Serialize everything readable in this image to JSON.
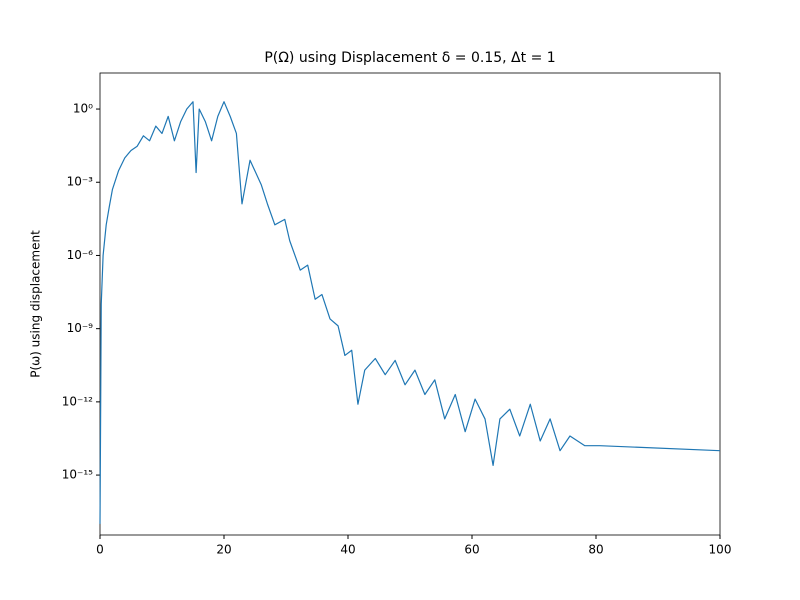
{
  "chart_data": {
    "type": "line",
    "title": "P(Ω) using Displacement δ = 0.15, Δt = 1",
    "y_label": "P(ω) using displacement",
    "yscale": "log",
    "grid": false,
    "xlim": [
      0,
      100
    ],
    "ylim": [
      3.5e-18,
      30
    ],
    "xticks": [
      0,
      20,
      40,
      60,
      80,
      100
    ],
    "yticks": [
      {
        "value": 1,
        "label": "10⁰"
      },
      {
        "value": 0.001,
        "label": "10⁻³"
      },
      {
        "value": 1e-06,
        "label": "10⁻⁶"
      },
      {
        "value": 1e-09,
        "label": "10⁻⁹"
      },
      {
        "value": 1e-12,
        "label": "10⁻¹²"
      },
      {
        "value": 1e-15,
        "label": "10⁻¹⁵"
      }
    ],
    "series": [
      {
        "color": "#1f77b4",
        "x": [
          0,
          0.2,
          0.5,
          1,
          1.5,
          2,
          3,
          4,
          5,
          6,
          7,
          8,
          9,
          10,
          11,
          12,
          13,
          14,
          15,
          15.5,
          16,
          17,
          18,
          19,
          20,
          21,
          22,
          22.9,
          24.2,
          26,
          27,
          28.2,
          29.8,
          30.6,
          32.3,
          33.5,
          34.7,
          35.8,
          37.1,
          38.4,
          39.5,
          40.6,
          41.6,
          42.7,
          44.4,
          46,
          47.6,
          49.2,
          50.8,
          52.4,
          54,
          55.6,
          57.3,
          58.9,
          60.5,
          62.1,
          63.4,
          64.5,
          66.1,
          67.7,
          69.4,
          71,
          72.6,
          74.2,
          75.8,
          78.2,
          80.6,
          100
        ],
        "values": [
          1e-17,
          1e-08,
          1e-06,
          1.8e-05,
          0.0001,
          0.0005,
          0.003,
          0.01,
          0.02,
          0.03,
          0.08,
          0.05,
          0.2,
          0.1,
          0.5,
          0.05,
          0.3,
          1,
          2,
          0.0025,
          1,
          0.3,
          0.05,
          0.5,
          2,
          0.5,
          0.1,
          0.00013,
          0.008,
          0.0008,
          0.00013,
          1.8e-05,
          3e-05,
          4e-06,
          2.5e-07,
          4e-07,
          1.6e-08,
          2.5e-08,
          2.5e-09,
          1.3e-09,
          8e-11,
          1.3e-10,
          8e-13,
          2e-11,
          6e-11,
          1.3e-11,
          5e-11,
          5e-12,
          2e-11,
          2e-12,
          8e-12,
          2e-13,
          2e-12,
          6e-14,
          1.3e-12,
          2e-13,
          2.5e-15,
          2e-13,
          5e-13,
          4e-14,
          8e-13,
          2.5e-14,
          2e-13,
          1e-14,
          4e-14,
          1.6e-14,
          1.6e-14,
          1e-14
        ]
      }
    ]
  }
}
